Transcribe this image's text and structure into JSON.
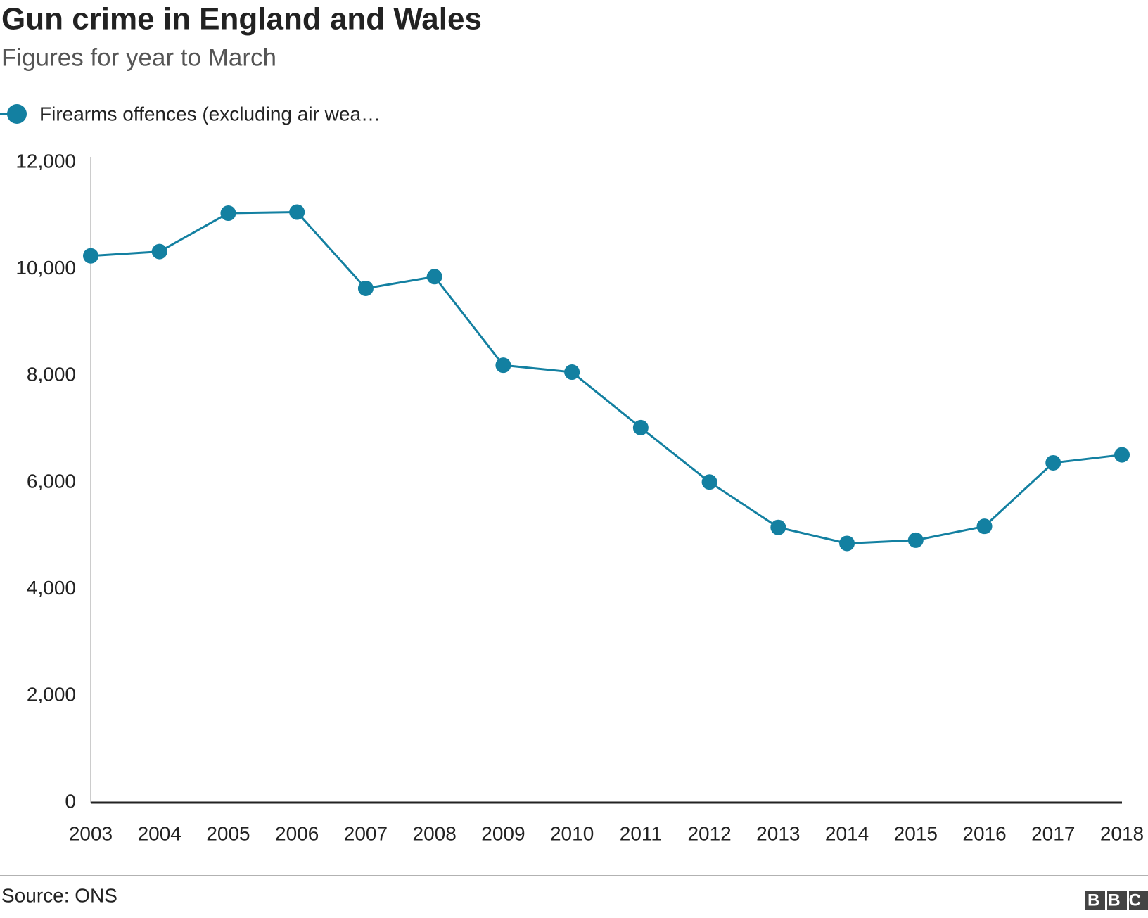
{
  "chart_data": {
    "type": "line",
    "title": "Gun crime in England and Wales",
    "subtitle": "Figures for year to March",
    "categories": [
      "2003",
      "2004",
      "2005",
      "2006",
      "2007",
      "2008",
      "2009",
      "2010",
      "2011",
      "2012",
      "2013",
      "2014",
      "2015",
      "2016",
      "2017",
      "2018"
    ],
    "series": [
      {
        "name": "Firearms offences (excluding air wea…",
        "color": "#1380a1",
        "values": [
          10250,
          10330,
          11050,
          11070,
          9640,
          9860,
          8200,
          8070,
          7030,
          6010,
          5160,
          4860,
          4920,
          5180,
          6370,
          6520
        ]
      }
    ],
    "ylim": [
      0,
      12000
    ],
    "yticks": [
      0,
      {
        "value": 2000,
        "label": "2,000"
      },
      {
        "value": 4000,
        "label": "4,000"
      },
      {
        "value": 6000,
        "label": "6,000"
      },
      {
        "value": 8000,
        "label": "8,000"
      },
      {
        "value": 10000,
        "label": "10,000"
      },
      {
        "value": 12000,
        "label": "12,000"
      }
    ],
    "grid": false,
    "source": "Source: ONS",
    "logo": "BBC"
  }
}
